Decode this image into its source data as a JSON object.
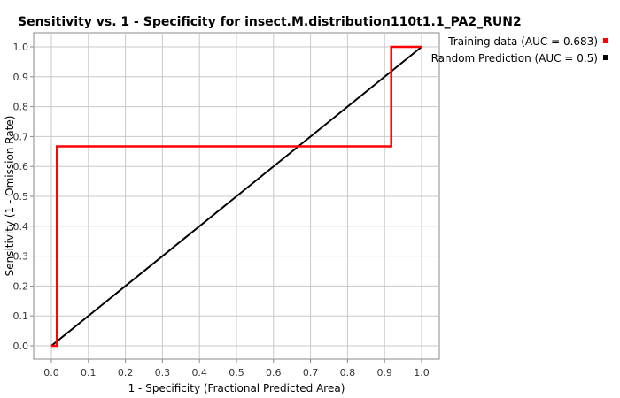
{
  "chart_data": {
    "type": "line",
    "title": "Sensitivity vs. 1 - Specificity for insect.M.distribution110t1.1_PA2_RUN2",
    "xlabel": "1 - Specificity  (Fractional Predicted Area)",
    "ylabel": "Sensitivity (1 - Omission Rate)",
    "xlim": [
      0.0,
      1.0
    ],
    "ylim": [
      0.0,
      1.0
    ],
    "x_ticks": [
      "0.0",
      "0.1",
      "0.2",
      "0.3",
      "0.4",
      "0.5",
      "0.6",
      "0.7",
      "0.8",
      "0.9",
      "1.0"
    ],
    "y_ticks": [
      "0.0",
      "0.1",
      "0.2",
      "0.3",
      "0.4",
      "0.5",
      "0.6",
      "0.7",
      "0.8",
      "0.9",
      "1.0"
    ],
    "grid": true,
    "legend_position": "top-right, outside plot",
    "series": [
      {
        "name": "Training data (AUC = 0.683)",
        "color": "#ff0000",
        "x": [
          0.0,
          0.015,
          0.015,
          0.918,
          0.918,
          1.0
        ],
        "y": [
          0.0,
          0.0,
          0.667,
          0.667,
          1.0,
          1.0
        ]
      },
      {
        "name": "Random Prediction (AUC = 0.5)",
        "color": "#000000",
        "x": [
          0.0,
          1.0
        ],
        "y": [
          0.0,
          1.0
        ]
      }
    ]
  }
}
